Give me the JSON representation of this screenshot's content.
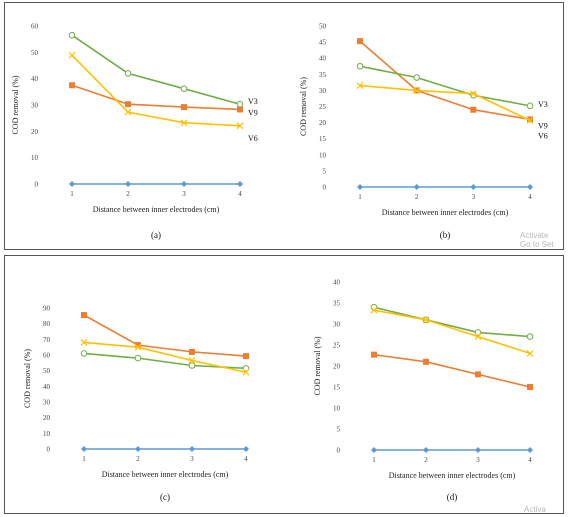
{
  "colors": {
    "blue": "#5b9bd5",
    "orange": "#ed7d31",
    "green": "#70ad47",
    "yellow": "#ffc000",
    "grid": "#d9d9d9"
  },
  "watermark": {
    "line1": "Activate",
    "line2": "Go to Set",
    "bottom": "Activa"
  },
  "chart_data": [
    {
      "type": "line",
      "panel_label": "(a)",
      "xlabel": "Distance between inner electrodes (cm)",
      "ylabel": "COD removal (%)",
      "x": [
        1,
        2,
        3,
        4
      ],
      "ylim": [
        0,
        60
      ],
      "yticks": [
        0,
        10,
        20,
        30,
        40,
        50,
        60
      ],
      "grid": false,
      "series": [
        {
          "name": "",
          "color": "blue",
          "marker": "diamond",
          "values": [
            0,
            0,
            0,
            0
          ]
        },
        {
          "name": "V9",
          "color": "orange",
          "marker": "square",
          "values": [
            37.5,
            30.3,
            29.2,
            28.3
          ]
        },
        {
          "name": "V3",
          "color": "green",
          "marker": "circle",
          "values": [
            56.5,
            42.0,
            36.2,
            30.3
          ]
        },
        {
          "name": "V6",
          "color": "yellow",
          "marker": "x",
          "values": [
            48.9,
            27.3,
            23.3,
            22.1
          ]
        }
      ],
      "annotations": [
        {
          "text": "V3",
          "series": "green"
        },
        {
          "text": "V9",
          "series": "orange"
        },
        {
          "text": "V6",
          "series": "yellow"
        }
      ]
    },
    {
      "type": "line",
      "panel_label": "(b)",
      "xlabel": "Distance between inner electrodes (cm)",
      "ylabel": "COD removal (%)",
      "x": [
        1,
        2,
        3,
        4
      ],
      "ylim": [
        0,
        50
      ],
      "yticks": [
        0,
        5,
        10,
        15,
        20,
        25,
        30,
        35,
        40,
        45,
        50
      ],
      "grid": false,
      "series": [
        {
          "name": "",
          "color": "blue",
          "marker": "diamond",
          "values": [
            0,
            0,
            0,
            0
          ]
        },
        {
          "name": "V9",
          "color": "orange",
          "marker": "square",
          "values": [
            45.3,
            30.0,
            24.0,
            21.0
          ]
        },
        {
          "name": "V3",
          "color": "green",
          "marker": "circle",
          "values": [
            37.5,
            34.0,
            28.5,
            25.2
          ]
        },
        {
          "name": "V6",
          "color": "yellow",
          "marker": "x",
          "values": [
            31.5,
            30.0,
            29.0,
            20.7
          ]
        }
      ],
      "annotations": [
        {
          "text": "V3",
          "series": "green"
        },
        {
          "text": "V9",
          "series": "orange"
        },
        {
          "text": "V6",
          "series": "yellow"
        }
      ]
    },
    {
      "type": "line",
      "panel_label": "(c)",
      "xlabel": "Distance between inner electrodes (cm)",
      "ylabel": "COD removal (%)",
      "x": [
        1,
        2,
        3,
        4
      ],
      "ylim": [
        0,
        90
      ],
      "yticks": [
        0,
        10,
        20,
        30,
        40,
        50,
        60,
        70,
        80,
        90
      ],
      "grid": false,
      "series": [
        {
          "name": "",
          "color": "blue",
          "marker": "diamond",
          "values": [
            0,
            0,
            0,
            0
          ]
        },
        {
          "name": "",
          "color": "orange",
          "marker": "square",
          "values": [
            85.5,
            66.3,
            62.0,
            59.3
          ]
        },
        {
          "name": "",
          "color": "green",
          "marker": "circle",
          "values": [
            61.0,
            58.0,
            53.3,
            51.5
          ]
        },
        {
          "name": "",
          "color": "yellow",
          "marker": "x",
          "values": [
            68.0,
            65.0,
            56.5,
            49.0
          ]
        }
      ],
      "annotations": []
    },
    {
      "type": "line",
      "panel_label": "(d)",
      "xlabel": "Distance between inner electrodes (cm)",
      "ylabel": "COD removal (%)",
      "x": [
        1,
        2,
        3,
        4
      ],
      "ylim": [
        0,
        40
      ],
      "yticks": [
        0,
        5,
        10,
        15,
        20,
        25,
        30,
        35,
        40
      ],
      "grid": false,
      "series": [
        {
          "name": "",
          "color": "blue",
          "marker": "diamond",
          "values": [
            0,
            0,
            0,
            0
          ]
        },
        {
          "name": "",
          "color": "orange",
          "marker": "square",
          "values": [
            22.7,
            21.0,
            18.0,
            15.0
          ]
        },
        {
          "name": "",
          "color": "green",
          "marker": "circle",
          "values": [
            34.0,
            31.0,
            28.0,
            27.0
          ]
        },
        {
          "name": "",
          "color": "yellow",
          "marker": "x",
          "values": [
            33.3,
            31.0,
            27.0,
            23.0
          ]
        }
      ],
      "annotations": []
    }
  ]
}
